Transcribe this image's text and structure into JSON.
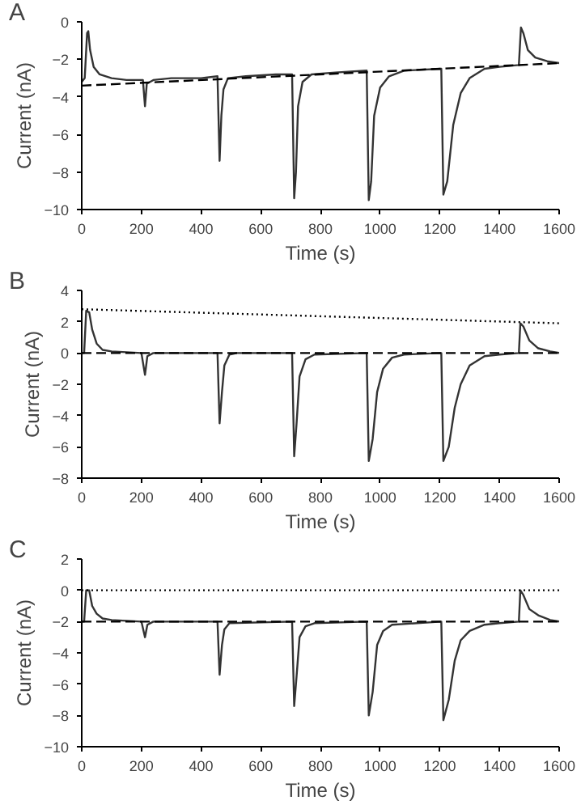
{
  "chart_data": [
    {
      "type": "line",
      "title": "A",
      "xlabel": "Time (s)",
      "ylabel": "Current (nA)",
      "xlim": [
        0,
        1600
      ],
      "xticks": [
        0,
        200,
        400,
        600,
        800,
        1000,
        1200,
        1400,
        1600
      ],
      "ylim": [
        -10,
        0
      ],
      "yticks": [
        -10,
        -8,
        -6,
        -4,
        -2,
        0
      ],
      "grid": false,
      "series": [
        {
          "color": "#333333",
          "line_style": "solid",
          "x": [
            0,
            10,
            18,
            22,
            28,
            40,
            60,
            100,
            150,
            205,
            212,
            218,
            240,
            300,
            400,
            455,
            462,
            468,
            475,
            490,
            550,
            650,
            705,
            712,
            718,
            725,
            740,
            770,
            850,
            955,
            962,
            970,
            980,
            1000,
            1030,
            1080,
            1205,
            1212,
            1225,
            1245,
            1270,
            1300,
            1350,
            1400,
            1465,
            1472,
            1480,
            1495,
            1520,
            1560,
            1600
          ],
          "values": [
            -3.2,
            -3.0,
            -0.6,
            -0.5,
            -1.5,
            -2.4,
            -2.8,
            -3.0,
            -3.1,
            -3.1,
            -4.5,
            -3.3,
            -3.1,
            -3.0,
            -3.0,
            -2.9,
            -7.4,
            -5.0,
            -3.6,
            -3.0,
            -2.9,
            -2.8,
            -2.8,
            -9.4,
            -8.0,
            -4.5,
            -3.2,
            -2.8,
            -2.7,
            -2.6,
            -9.5,
            -8.5,
            -5.0,
            -3.5,
            -2.9,
            -2.6,
            -2.5,
            -9.2,
            -8.5,
            -5.5,
            -3.8,
            -3.0,
            -2.5,
            -2.4,
            -2.3,
            -0.3,
            -0.6,
            -1.5,
            -1.9,
            -2.1,
            -2.2
          ]
        },
        {
          "color": "#000000",
          "line_style": "dashed",
          "x": [
            0,
            1600
          ],
          "values": [
            -3.4,
            -2.2
          ]
        }
      ]
    },
    {
      "type": "line",
      "title": "B",
      "xlabel": "Time (s)",
      "ylabel": "Current (nA)",
      "xlim": [
        0,
        1600
      ],
      "xticks": [
        0,
        200,
        400,
        600,
        800,
        1000,
        1200,
        1400,
        1600
      ],
      "ylim": [
        -8,
        4
      ],
      "yticks": [
        -8,
        -6,
        -4,
        -2,
        0,
        2,
        4
      ],
      "grid": false,
      "series": [
        {
          "color": "#333333",
          "line_style": "solid",
          "x": [
            0,
            8,
            15,
            25,
            35,
            50,
            70,
            100,
            200,
            212,
            220,
            240,
            455,
            462,
            470,
            478,
            495,
            520,
            705,
            712,
            720,
            730,
            750,
            780,
            955,
            962,
            975,
            990,
            1010,
            1040,
            1080,
            1205,
            1212,
            1230,
            1250,
            1270,
            1300,
            1350,
            1400,
            1465,
            1470,
            1480,
            1500,
            1530,
            1570,
            1600
          ],
          "values": [
            0,
            0,
            2.7,
            2.6,
            1.5,
            0.6,
            0.2,
            0.1,
            0,
            -1.4,
            -0.2,
            0,
            0,
            -4.5,
            -2.5,
            -0.8,
            -0.1,
            0,
            0,
            -6.6,
            -4.5,
            -1.5,
            -0.4,
            -0.1,
            0,
            -6.9,
            -5.5,
            -2.5,
            -1.0,
            -0.3,
            -0.1,
            0,
            -6.9,
            -6.0,
            -3.5,
            -2.0,
            -0.8,
            -0.2,
            -0.1,
            0,
            1.9,
            1.7,
            0.8,
            0.3,
            0.1,
            0
          ]
        },
        {
          "color": "#000000",
          "line_style": "dashed",
          "x": [
            0,
            1600
          ],
          "values": [
            0,
            0
          ]
        },
        {
          "color": "#000000",
          "line_style": "dotted",
          "x": [
            0,
            1600
          ],
          "values": [
            2.8,
            1.9
          ]
        }
      ]
    },
    {
      "type": "line",
      "title": "C",
      "xlabel": "Time (s)",
      "ylabel": "Current (nA)",
      "xlim": [
        0,
        1600
      ],
      "xticks": [
        0,
        200,
        400,
        600,
        800,
        1000,
        1200,
        1400,
        1600
      ],
      "ylim": [
        -10,
        2
      ],
      "yticks": [
        -10,
        -8,
        -6,
        -4,
        -2,
        0,
        2
      ],
      "grid": false,
      "series": [
        {
          "color": "#333333",
          "line_style": "solid",
          "x": [
            0,
            8,
            15,
            25,
            35,
            50,
            70,
            100,
            200,
            212,
            220,
            240,
            455,
            462,
            470,
            478,
            495,
            705,
            712,
            720,
            730,
            750,
            780,
            955,
            962,
            975,
            990,
            1010,
            1040,
            1205,
            1212,
            1230,
            1250,
            1270,
            1300,
            1350,
            1400,
            1465,
            1470,
            1480,
            1500,
            1530,
            1570,
            1600
          ],
          "values": [
            -2,
            -2,
            0,
            0,
            -1.0,
            -1.5,
            -1.8,
            -1.9,
            -2,
            -3.0,
            -2.2,
            -2,
            -2,
            -5.4,
            -3.5,
            -2.5,
            -2.1,
            -2,
            -7.4,
            -5.5,
            -3.0,
            -2.3,
            -2.1,
            -2,
            -8.0,
            -6.5,
            -3.5,
            -2.6,
            -2.2,
            -2,
            -8.3,
            -7.0,
            -4.5,
            -3.2,
            -2.6,
            -2.2,
            -2.1,
            -2,
            0,
            -0.3,
            -1.2,
            -1.6,
            -1.9,
            -2
          ]
        },
        {
          "color": "#000000",
          "line_style": "dashed",
          "x": [
            0,
            1600
          ],
          "values": [
            -2,
            -2
          ]
        },
        {
          "color": "#000000",
          "line_style": "dotted",
          "x": [
            0,
            1600
          ],
          "values": [
            0,
            0
          ]
        }
      ]
    }
  ]
}
